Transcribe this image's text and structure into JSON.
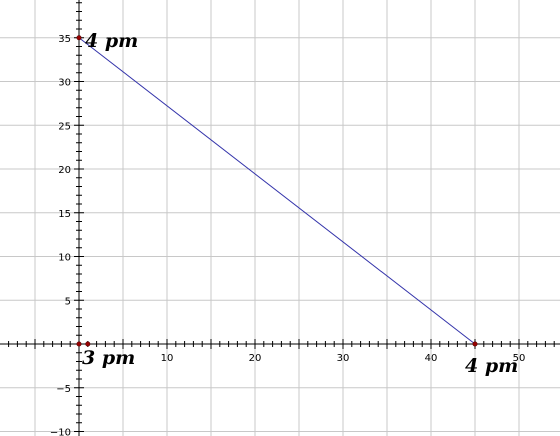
{
  "chart_data": {
    "type": "line",
    "xlim": [
      -9,
      54
    ],
    "ylim": [
      -10,
      39
    ],
    "x_ticks": [
      10,
      20,
      30,
      40,
      50
    ],
    "y_ticks": [
      -10,
      -5,
      5,
      10,
      15,
      20,
      25,
      30,
      35
    ],
    "grid": true,
    "series": [
      {
        "x": [
          0,
          45
        ],
        "y": [
          35,
          0
        ],
        "color": "#3333aa"
      }
    ],
    "points": [
      {
        "x": 0,
        "y": 35
      },
      {
        "x": 45,
        "y": 0
      },
      {
        "x": 0,
        "y": 0
      },
      {
        "x": 1,
        "y": 0
      }
    ],
    "annotations": [
      {
        "text": "4 pm",
        "x": 0,
        "y": 35,
        "anchor": "upper"
      },
      {
        "text": "3 pm",
        "x": 0,
        "y": 0,
        "anchor": "lower"
      },
      {
        "text": "4 pm",
        "x": 45,
        "y": 0,
        "anchor": "lower"
      }
    ],
    "colors": {
      "line": "#3333aa",
      "point": "#990000",
      "grid": "#c8c8c8",
      "axis": "#000000"
    }
  }
}
